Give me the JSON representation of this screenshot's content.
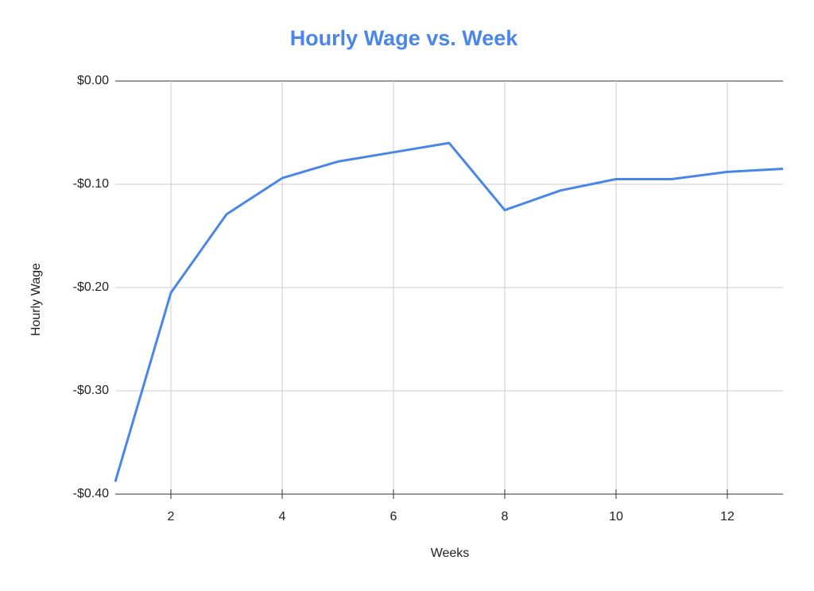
{
  "chart_data": {
    "type": "line",
    "title": "Hourly Wage vs. Week",
    "x_label": "Weeks",
    "y_label": "Hourly Wage",
    "x": [
      1,
      2,
      3,
      4,
      5,
      6,
      7,
      8,
      9,
      10,
      11,
      12,
      13
    ],
    "series": [
      {
        "name": "Hourly Wage",
        "color": "#4a86e8",
        "values": [
          -0.388,
          -0.205,
          -0.129,
          -0.094,
          -0.078,
          -0.069,
          -0.06,
          -0.125,
          -0.106,
          -0.095,
          -0.095,
          -0.088,
          -0.085
        ]
      }
    ],
    "xlim": [
      1,
      13
    ],
    "xticks": [
      2,
      4,
      6,
      8,
      10,
      12
    ],
    "ylim": [
      -0.4,
      0
    ],
    "yticks": [
      {
        "value": -0.4,
        "label": "-$0.40"
      },
      {
        "value": -0.3,
        "label": "-$0.30"
      },
      {
        "value": -0.2,
        "label": "-$0.20"
      },
      {
        "value": -0.1,
        "label": "-$0.10"
      },
      {
        "value": 0,
        "label": "$0.00"
      }
    ],
    "grid": true
  }
}
